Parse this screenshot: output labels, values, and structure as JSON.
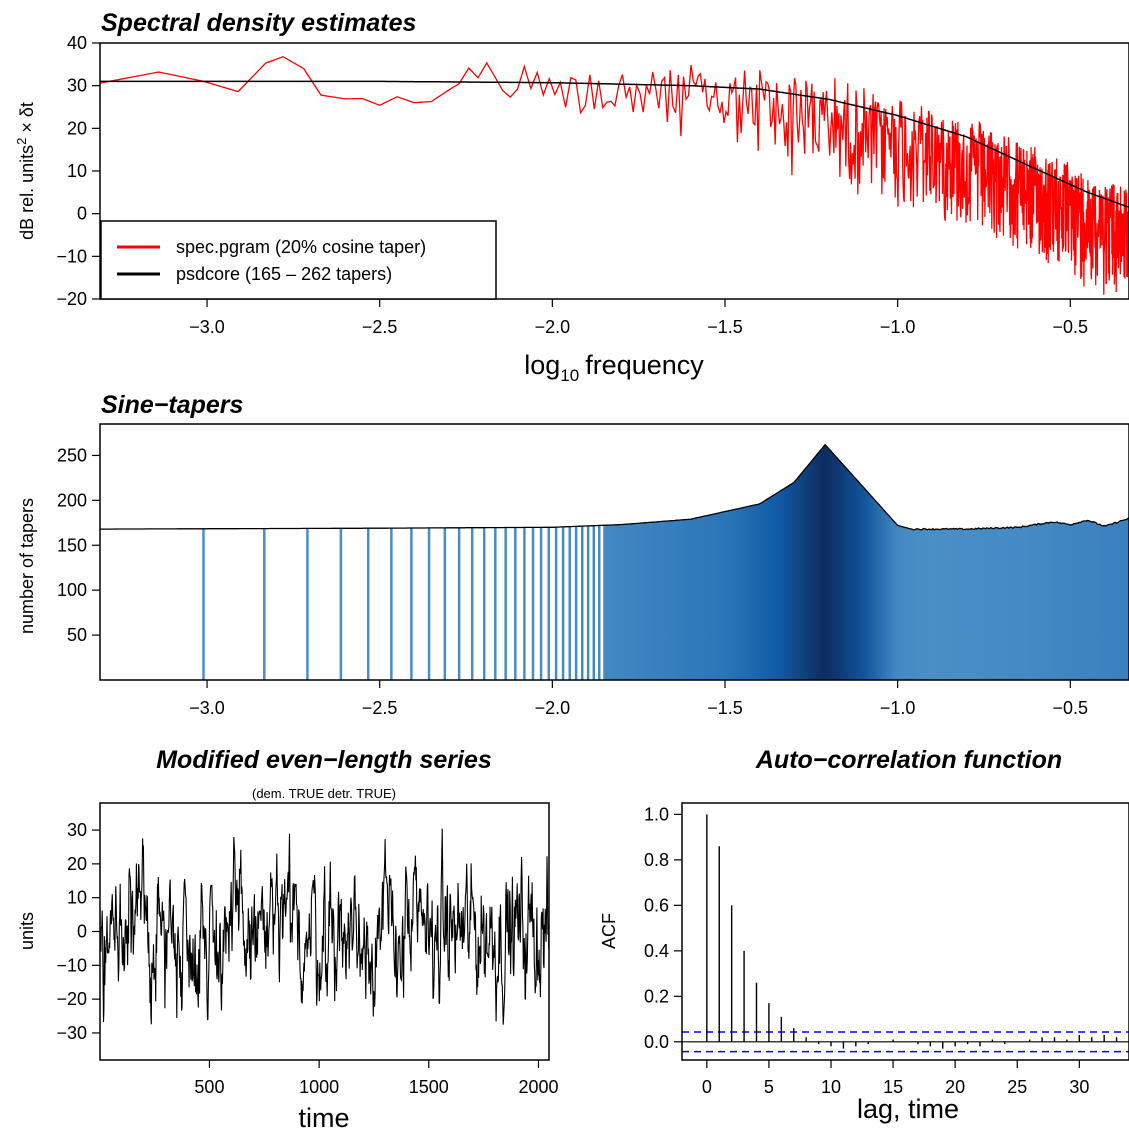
{
  "chart_data": [
    {
      "id": "spectral",
      "type": "line",
      "title": "Spectral density estimates",
      "xlabel": "log10 frequency",
      "xlabel_main": "log",
      "xlabel_sub": "10",
      "xlabel_rest": "frequency",
      "ylabel": "dB rel. units² × δt",
      "ylabel_main": "dB rel.  units",
      "ylabel_sup": "2",
      "ylabel_rest": " × δt",
      "xlim": [
        -3.31,
        -0.33
      ],
      "ylim": [
        -20,
        40
      ],
      "xticks": [
        -3.0,
        -2.5,
        -2.0,
        -1.5,
        -1.0,
        -0.5
      ],
      "xtick_labels": [
        "−3.0",
        "−2.5",
        "−2.0",
        "−1.5",
        "−1.0",
        "−0.5"
      ],
      "yticks": [
        -20,
        -10,
        0,
        10,
        20,
        30,
        40
      ],
      "ytick_labels": [
        "−20",
        "−10",
        "0",
        "10",
        "20",
        "30",
        "40"
      ],
      "legend_position": "bottom-left",
      "series": [
        {
          "name": "spec.pgram (20% cosine taper)",
          "color": "#ff0000",
          "style": "noisy periodogram",
          "anchors_x": [
            -3.31,
            -3.14,
            -3.01,
            -2.91,
            -2.83,
            -2.78,
            -2.72,
            -2.67,
            -2.6,
            -2.55,
            -2.5,
            -2.45,
            -2.4,
            -2.35,
            -2.3
          ],
          "anchors_y": [
            30.6,
            33.2,
            31.0,
            28.6,
            35.3,
            36.8,
            34.0,
            27.8,
            26.9,
            27.0,
            25.4,
            27.4,
            26.0,
            26.3,
            29.0
          ]
        },
        {
          "name": "psdcore (165 – 262 tapers)",
          "color": "#000000",
          "style": "smooth",
          "x": [
            -3.31,
            -2.5,
            -2.0,
            -1.6,
            -1.4,
            -1.2,
            -1.0,
            -0.8,
            -0.6,
            -0.45,
            -0.33
          ],
          "y": [
            31.0,
            31.0,
            30.7,
            30.0,
            29.2,
            26.8,
            23.0,
            18.0,
            10.5,
            5.0,
            1.5
          ]
        }
      ]
    },
    {
      "id": "tapers",
      "type": "bar",
      "title": "Sine−tapers",
      "ylabel": "number of tapers",
      "xlim": [
        -3.31,
        -0.33
      ],
      "ylim": [
        0,
        285
      ],
      "xticks": [
        -3.0,
        -2.5,
        -2.0,
        -1.5,
        -1.0,
        -0.5
      ],
      "xtick_labels": [
        "−3.0",
        "−2.5",
        "−2.0",
        "−1.5",
        "−1.0",
        "−0.5"
      ],
      "yticks": [
        50,
        100,
        150,
        200,
        250
      ],
      "ytick_labels": [
        "50",
        "100",
        "150",
        "200",
        "250"
      ],
      "x": [
        -3.31,
        -2.5,
        -2.0,
        -1.8,
        -1.6,
        -1.4,
        -1.3,
        -1.21,
        -1.1,
        -1.0,
        -0.96,
        -0.8,
        -0.65,
        -0.55,
        -0.5,
        -0.45,
        -0.4,
        -0.33
      ],
      "y": [
        168,
        169,
        170,
        173,
        179,
        196,
        220,
        262,
        215,
        172,
        168,
        168,
        170,
        176,
        173,
        178,
        171,
        180
      ],
      "colors": {
        "light": "#4a8fc6",
        "mid": "#1260ad",
        "dark": "#0d2b5e"
      }
    },
    {
      "id": "series",
      "type": "line",
      "title": "Modified even−length series",
      "subtitle": "(dem. TRUE detr. TRUE)",
      "xlabel": "time",
      "ylabel": "units",
      "xlim": [
        1,
        2048
      ],
      "ylim": [
        -38,
        38
      ],
      "xticks": [
        500,
        1000,
        1500,
        2000
      ],
      "xtick_labels": [
        "500",
        "1000",
        "1500",
        "2000"
      ],
      "yticks": [
        -30,
        -20,
        -10,
        0,
        10,
        20,
        30
      ],
      "ytick_labels": [
        "−30",
        "−20",
        "−10",
        "0",
        "10",
        "20",
        "30"
      ],
      "range_y": [
        -35,
        34
      ],
      "color": "#000000"
    },
    {
      "id": "acf",
      "type": "bar",
      "title": "Auto−correlation function",
      "xlabel": "lag, time",
      "ylabel": "ACF",
      "xlim": [
        -2,
        34
      ],
      "ylim": [
        -0.08,
        1.05
      ],
      "xticks": [
        0,
        5,
        10,
        15,
        20,
        25,
        30
      ],
      "xtick_labels": [
        "0",
        "5",
        "10",
        "15",
        "20",
        "25",
        "30"
      ],
      "yticks": [
        0.0,
        0.2,
        0.4,
        0.6,
        0.8,
        1.0
      ],
      "ytick_labels": [
        "0.0",
        "0.2",
        "0.4",
        "0.6",
        "0.8",
        "1.0"
      ],
      "lags": [
        0,
        1,
        2,
        3,
        4,
        5,
        6,
        7,
        8,
        9,
        10,
        11,
        12,
        13,
        14,
        15,
        16,
        17,
        18,
        19,
        20,
        21,
        22,
        23,
        24,
        25,
        26,
        27,
        28,
        29,
        30,
        31,
        32,
        33
      ],
      "values": [
        1.0,
        0.86,
        0.6,
        0.4,
        0.26,
        0.17,
        0.11,
        0.06,
        0.02,
        -0.01,
        -0.02,
        -0.03,
        -0.02,
        -0.01,
        0.0,
        0.01,
        0.0,
        -0.01,
        -0.02,
        -0.03,
        -0.02,
        -0.01,
        -0.02,
        0.01,
        -0.01,
        0.0,
        0.01,
        0.02,
        0.02,
        0.01,
        0.03,
        0.02,
        0.03,
        0.02
      ],
      "ci": 0.043,
      "ci_color": "#0000ff"
    }
  ]
}
